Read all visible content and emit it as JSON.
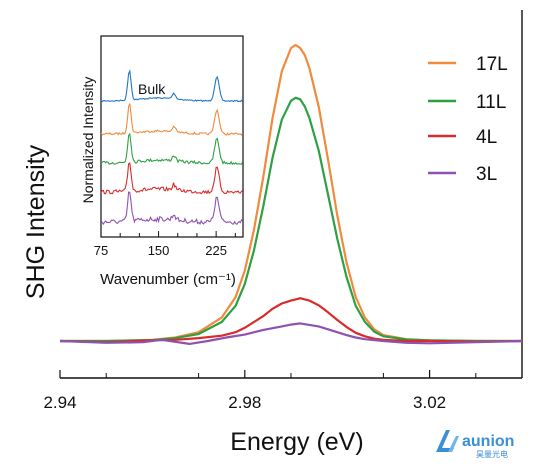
{
  "chart_data": [
    {
      "type": "line",
      "title": "",
      "xlabel": "Energy (eV)",
      "ylabel": "SHG Intensity",
      "xlim": [
        2.94,
        3.04
      ],
      "ylim": [
        0,
        1.05
      ],
      "x_ticks": [
        "2.94",
        "2.98",
        "3.02"
      ],
      "x_tick_values": [
        2.94,
        2.98,
        3.02
      ],
      "y_ticks": [],
      "grid": false,
      "legend_position": "top-right",
      "series": [
        {
          "name": "17L",
          "color": "#f08a3c",
          "x": [
            2.94,
            2.95,
            2.96,
            2.965,
            2.97,
            2.975,
            2.978,
            2.98,
            2.982,
            2.984,
            2.986,
            2.988,
            2.99,
            2.991,
            2.992,
            2.993,
            2.994,
            2.996,
            2.998,
            3.0,
            3.002,
            3.004,
            3.006,
            3.008,
            3.01,
            3.015,
            3.02,
            3.03,
            3.04
          ],
          "y": [
            0.0,
            0.0,
            0.004,
            0.012,
            0.03,
            0.08,
            0.15,
            0.24,
            0.38,
            0.56,
            0.76,
            0.92,
            1.0,
            1.01,
            1.0,
            0.975,
            0.93,
            0.8,
            0.62,
            0.43,
            0.27,
            0.15,
            0.08,
            0.04,
            0.02,
            0.006,
            0.002,
            0.0,
            0.0
          ]
        },
        {
          "name": "11L",
          "color": "#2ea043",
          "x": [
            2.94,
            2.95,
            2.96,
            2.965,
            2.97,
            2.975,
            2.978,
            2.98,
            2.982,
            2.984,
            2.986,
            2.988,
            2.99,
            2.991,
            2.992,
            2.993,
            2.994,
            2.996,
            2.998,
            3.0,
            3.002,
            3.004,
            3.006,
            3.008,
            3.01,
            3.015,
            3.02,
            3.03,
            3.04
          ],
          "y": [
            0.0,
            0.0,
            0.003,
            0.01,
            0.024,
            0.065,
            0.12,
            0.195,
            0.31,
            0.46,
            0.625,
            0.755,
            0.82,
            0.83,
            0.825,
            0.8,
            0.76,
            0.65,
            0.5,
            0.35,
            0.22,
            0.12,
            0.065,
            0.032,
            0.016,
            0.005,
            0.002,
            0.0,
            0.0
          ]
        },
        {
          "name": "4L",
          "color": "#d92b2b",
          "x": [
            2.94,
            2.95,
            2.96,
            2.965,
            2.97,
            2.975,
            2.978,
            2.98,
            2.982,
            2.984,
            2.986,
            2.988,
            2.99,
            2.991,
            2.992,
            2.993,
            2.994,
            2.996,
            2.998,
            3.0,
            3.002,
            3.004,
            3.006,
            3.008,
            3.01,
            3.015,
            3.02,
            3.03,
            3.04
          ],
          "y": [
            0.0,
            -0.004,
            0.002,
            0.004,
            0.01,
            0.018,
            0.03,
            0.045,
            0.065,
            0.085,
            0.11,
            0.128,
            0.138,
            0.142,
            0.146,
            0.142,
            0.138,
            0.122,
            0.098,
            0.072,
            0.048,
            0.028,
            0.016,
            0.008,
            0.004,
            0.0,
            0.0,
            -0.002,
            0.0
          ]
        },
        {
          "name": "3L",
          "color": "#8e52b0",
          "x": [
            2.94,
            2.95,
            2.958,
            2.962,
            2.968,
            2.972,
            2.976,
            2.98,
            2.984,
            2.988,
            2.99,
            2.992,
            2.994,
            2.996,
            2.998,
            3.0,
            3.002,
            3.004,
            3.006,
            3.01,
            3.015,
            3.02,
            3.03,
            3.04
          ],
          "y": [
            0.0,
            -0.006,
            -0.004,
            0.004,
            -0.01,
            0.0,
            0.012,
            0.022,
            0.038,
            0.05,
            0.056,
            0.06,
            0.055,
            0.05,
            0.04,
            0.03,
            0.02,
            0.012,
            0.006,
            0.0,
            -0.006,
            -0.008,
            -0.004,
            0.0
          ]
        }
      ]
    },
    {
      "type": "line",
      "title": "",
      "subtitle": "inset",
      "annotation": "Bulk",
      "xlabel": "Wavenumber (cm⁻¹)",
      "ylabel": "Normalized Intensity",
      "xlim": [
        75,
        260
      ],
      "x_ticks": [
        "75",
        "150",
        "225"
      ],
      "x_tick_values": [
        75,
        150,
        225
      ],
      "grid": false,
      "series": [
        {
          "color": "#1f77c4",
          "offset": 4
        },
        {
          "color": "#f08a3c",
          "offset": 3
        },
        {
          "color": "#2ea043",
          "offset": 2
        },
        {
          "color": "#d92b2b",
          "offset": 1
        },
        {
          "color": "#8e52b0",
          "offset": 0
        }
      ],
      "peaks": [
        {
          "x": 112,
          "height": 1.0
        },
        {
          "x": 170,
          "height": 0.18
        },
        {
          "x": 226,
          "height": 0.8
        }
      ]
    }
  ],
  "watermark": {
    "brand": "aunion",
    "subtitle": "昊量光电"
  }
}
